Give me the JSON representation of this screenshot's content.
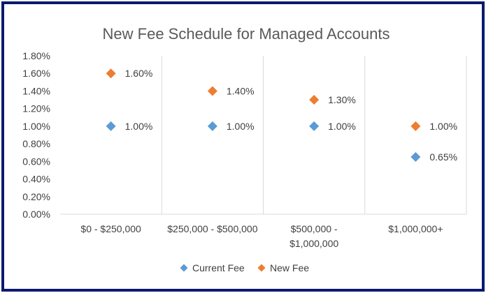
{
  "colors": {
    "current_fee": "#5b9bd5",
    "new_fee": "#ed7d31",
    "frame_border": "#0b1a6e",
    "gridline": "#d9d9d9"
  },
  "chart_data": {
    "type": "scatter",
    "title": "New Fee Schedule for Managed Accounts",
    "categories": [
      [
        "$0 - $250,000"
      ],
      [
        "$250,000 - $500,000"
      ],
      [
        "$500,000 -",
        "$1,000,000"
      ],
      [
        "$1,000,000+"
      ]
    ],
    "series": [
      {
        "name": "Current Fee",
        "values": [
          1.0,
          1.0,
          1.0,
          0.65
        ],
        "labels": [
          "1.00%",
          "1.00%",
          "1.00%",
          "0.65%"
        ]
      },
      {
        "name": "New Fee",
        "values": [
          1.6,
          1.4,
          1.3,
          1.0
        ],
        "labels": [
          "1.60%",
          "1.40%",
          "1.30%",
          "1.00%"
        ]
      }
    ],
    "ylim": [
      0,
      1.8
    ],
    "yticks": [
      "0.00%",
      "0.20%",
      "0.40%",
      "0.60%",
      "0.80%",
      "1.00%",
      "1.20%",
      "1.40%",
      "1.60%",
      "1.80%"
    ],
    "grid": "vertical",
    "legend_position": "bottom"
  }
}
